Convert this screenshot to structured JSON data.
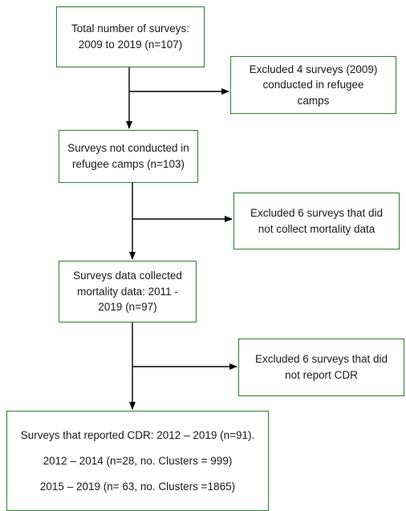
{
  "diagram": {
    "boxes": {
      "total": {
        "lines": [
          "Total number of surveys:",
          "2009 to 2019 (n=107)"
        ]
      },
      "excluded_camps": {
        "lines": [
          "Excluded 4 surveys (2009)",
          "conducted in refugee",
          "camps"
        ]
      },
      "not_in_camps": {
        "lines": [
          "Surveys not conducted in",
          "refugee camps (n=103)"
        ]
      },
      "excluded_mortality": {
        "lines": [
          "Excluded 6 surveys that did",
          "not collect mortality data"
        ]
      },
      "mortality_collected": {
        "lines": [
          "Surveys data collected",
          "mortality data: 2011 -",
          "2019 (n=97)"
        ]
      },
      "excluded_cdr": {
        "lines": [
          "Excluded 6 surveys that did",
          "not report CDR"
        ]
      },
      "reported_cdr": {
        "lines": [
          "Surveys that reported CDR: 2012 – 2019 (n=91).",
          "2012 – 2014 (n=28, no. Clusters = 999)",
          "2015 – 2019 (n= 63, no. Clusters =1865)"
        ]
      }
    },
    "colors": {
      "box_border": "#2e7d32",
      "arrow": "#000000"
    }
  }
}
